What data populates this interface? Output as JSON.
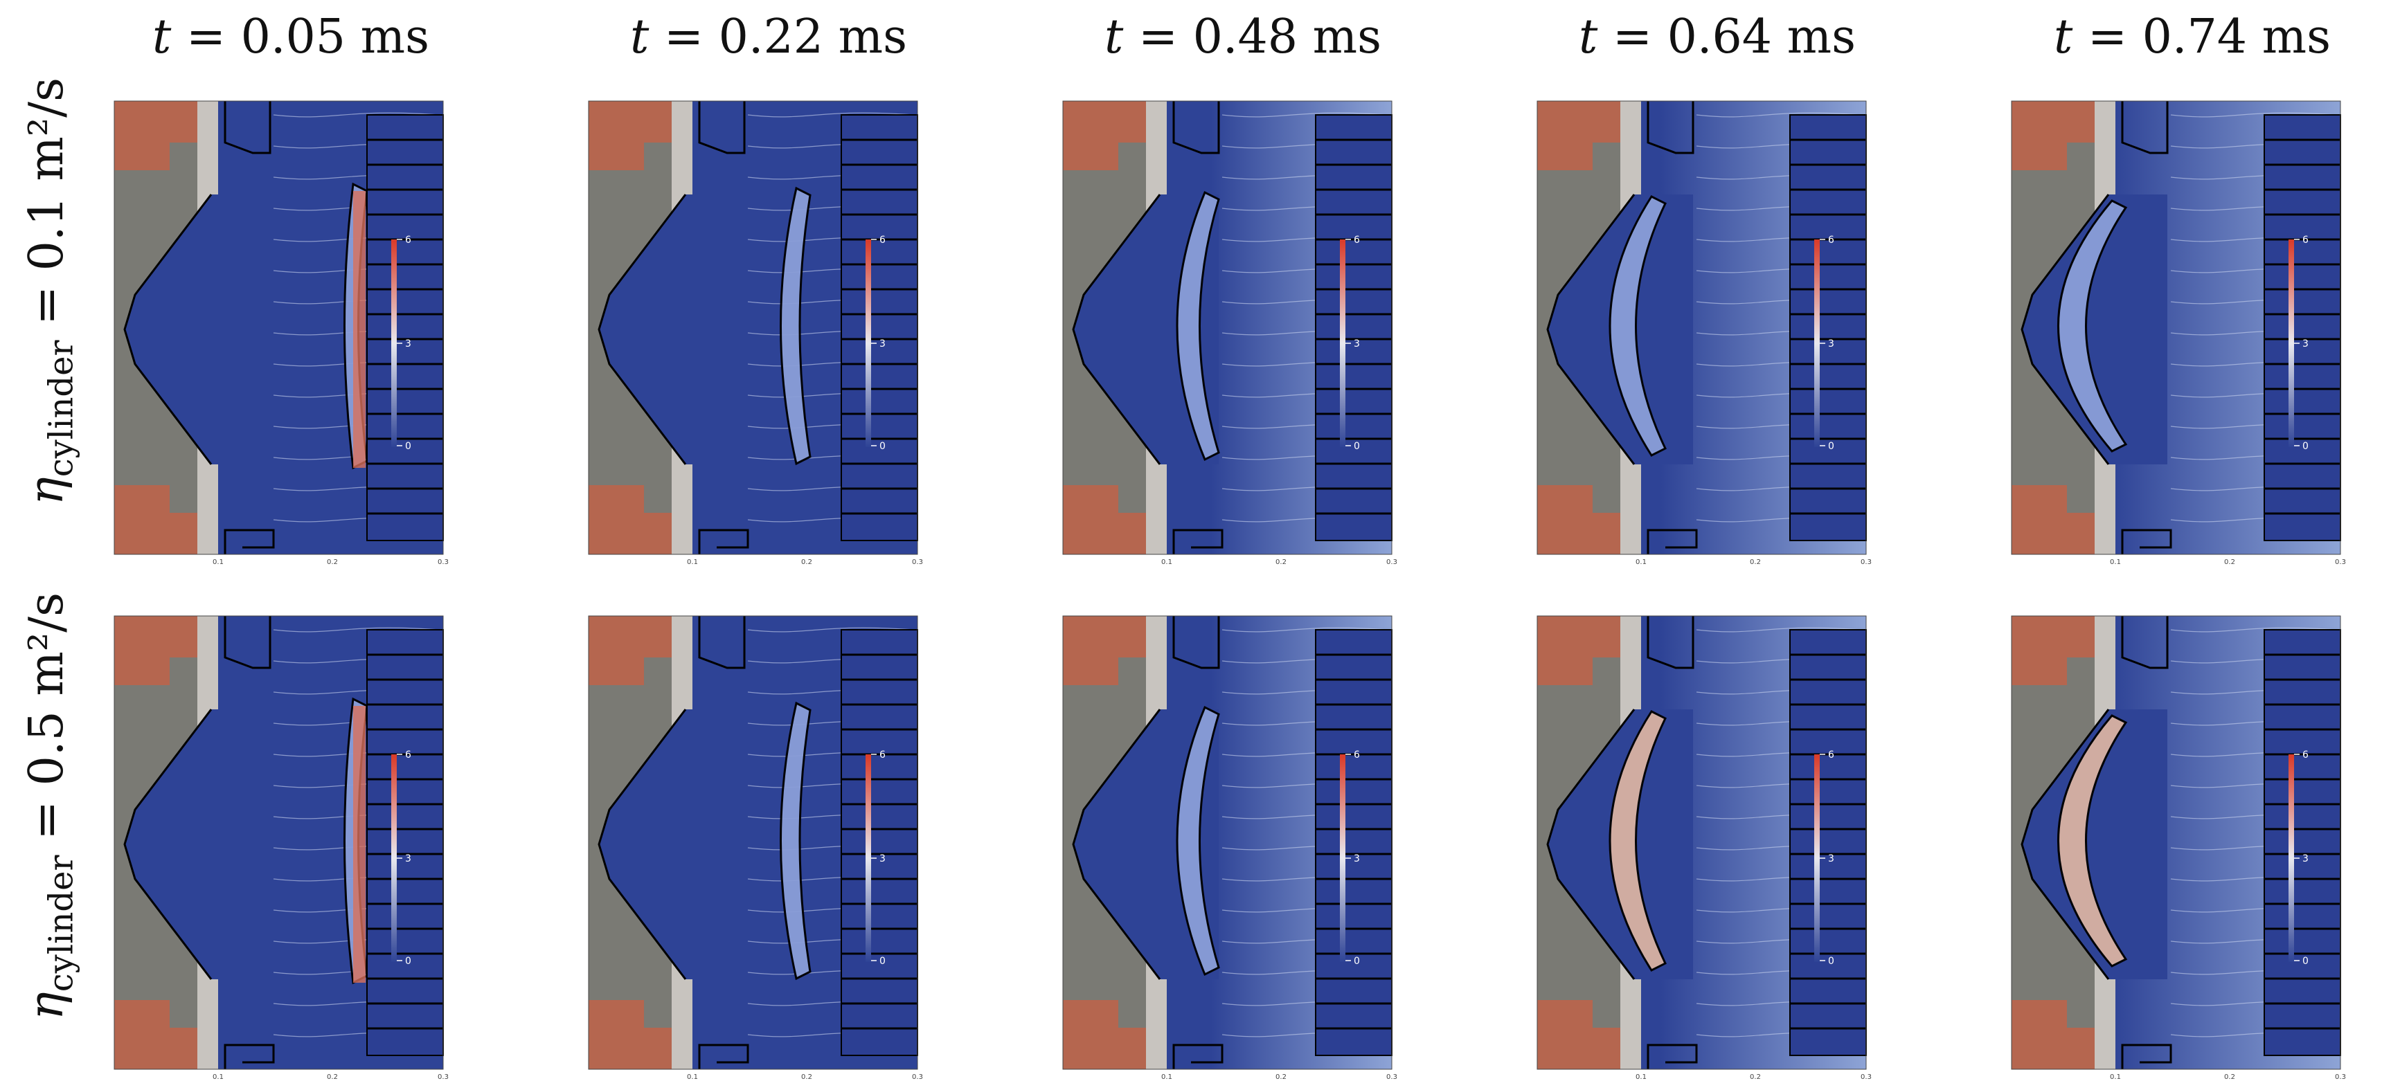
{
  "column_headers": [
    {
      "prefix": "t",
      "text": " = 0.05 ms"
    },
    {
      "prefix": "t",
      "text": " = 0.22 ms"
    },
    {
      "prefix": "t",
      "text": " = 0.48 ms"
    },
    {
      "prefix": "t",
      "text": " = 0.64 ms"
    },
    {
      "prefix": "t",
      "text": " = 0.74 ms"
    }
  ],
  "row_labels": [
    {
      "symbol": "η",
      "subscript": "cylinder",
      "text": " = 0.1 m²/s"
    },
    {
      "symbol": "η",
      "subscript": "cylinder",
      "text": " = 0.5 m²/s"
    }
  ],
  "colorbar_ticks": [
    "6",
    "3",
    "0"
  ],
  "x_ticks": [
    "0.1",
    "0.2",
    "0.3"
  ],
  "colors": {
    "plasma_blue": "#2e4396",
    "light_blue": "#8ea4d6",
    "coil_red": "#b5664f",
    "wall_gray": "#7a7a74",
    "light_gray": "#c8c4bf",
    "hot_red": "#d93a28"
  }
}
